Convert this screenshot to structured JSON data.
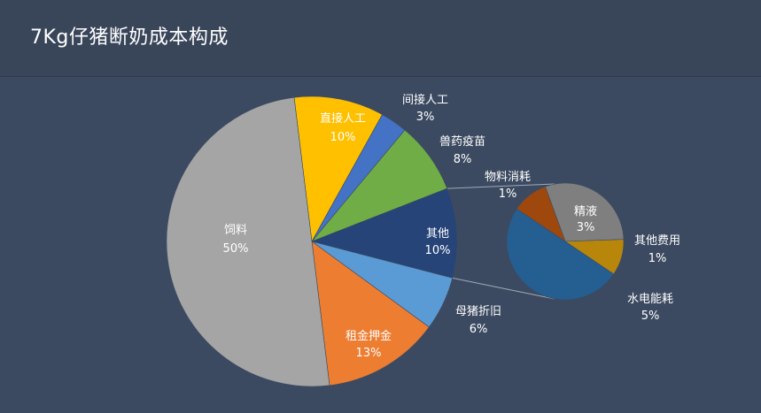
{
  "title": "7Kg仔猪断奶成本构成",
  "colors": {
    "feed": "#a5a5a5",
    "direct_labor": "#ffc000",
    "indirect_labor": "#4472c4",
    "vet_drugs": "#70ad47",
    "other": "#264478",
    "sow_depr": "#5b9bd5",
    "rent": "#ed7d31",
    "utilities": "#255e91",
    "semen": "#7f7f7f",
    "material": "#9e480e",
    "other_fees": "#b8860b",
    "connector": "#a0a8b6"
  },
  "chart_data": {
    "type": "pie",
    "subtype": "pie-of-pie",
    "main": [
      {
        "name": "直接人工",
        "label": "10%",
        "value": 10,
        "color_key": "direct_labor"
      },
      {
        "name": "间接人工",
        "label": "3%",
        "value": 3,
        "color_key": "indirect_labor"
      },
      {
        "name": "兽药疫苗",
        "label": "8%",
        "value": 8,
        "color_key": "vet_drugs"
      },
      {
        "name": "其他",
        "label": "10%",
        "value": 10,
        "color_key": "other"
      },
      {
        "name": "母猪折旧",
        "label": "6%",
        "value": 6,
        "color_key": "sow_depr"
      },
      {
        "name": "租金押金",
        "label": "13%",
        "value": 13,
        "color_key": "rent"
      },
      {
        "name": "饲料",
        "label": "50%",
        "value": 50,
        "color_key": "feed"
      }
    ],
    "secondary": [
      {
        "name": "精液",
        "label": "3%",
        "value": 3,
        "color_key": "semen"
      },
      {
        "name": "其他费用",
        "label": "1%",
        "value": 1,
        "color_key": "other_fees"
      },
      {
        "name": "水电能耗",
        "label": "5%",
        "value": 5,
        "color_key": "utilities"
      },
      {
        "name": "物料消耗",
        "label": "1%",
        "value": 1,
        "color_key": "material"
      }
    ]
  }
}
